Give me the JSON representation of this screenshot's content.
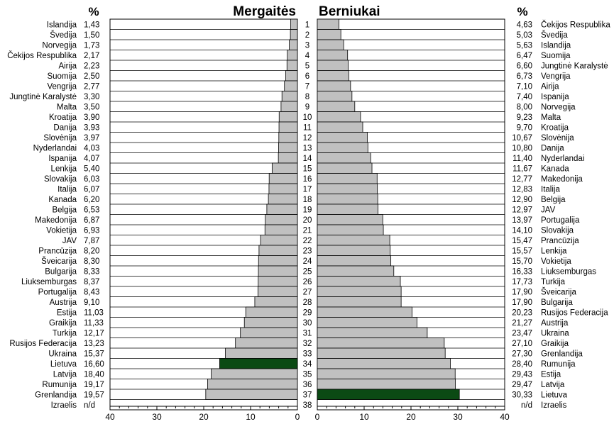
{
  "chart_data": {
    "type": "bar",
    "layout": "back-to-back horizontal bars",
    "percent_label": "%",
    "tick_labels": [
      "40",
      "30",
      "20",
      "10",
      "0",
      "0",
      "10",
      "20",
      "30",
      "40"
    ],
    "xlim": [
      0,
      40
    ],
    "highlight_color": "#0b4a14",
    "bar_color": "#c0c0c0",
    "missing_label": "n/d",
    "rank_labels": [
      "1",
      "2",
      "3",
      "4",
      "5",
      "6",
      "7",
      "8",
      "9",
      "10",
      "11",
      "12",
      "13",
      "14",
      "15",
      "16",
      "17",
      "18",
      "19",
      "20",
      "21",
      "22",
      "23",
      "24",
      "25",
      "26",
      "27",
      "28",
      "29",
      "30",
      "31",
      "32",
      "33",
      "34",
      "35",
      "36",
      "37",
      "38"
    ],
    "girls": {
      "title": "Mergaitės",
      "countries": [
        "Islandija",
        "Švedija",
        "Norvegija",
        "Čekijos Respublika",
        "Airija",
        "Suomija",
        "Vengrija",
        "Jungtinė Karalystė",
        "Malta",
        "Kroatija",
        "Danija",
        "Slovėnija",
        "Nyderlandai",
        "Ispanija",
        "Lenkija",
        "Slovakija",
        "Italija",
        "Kanada",
        "Belgija",
        "Makedonija",
        "Vokietija",
        "JAV",
        "Prancūzija",
        "Šveicarija",
        "Bulgarija",
        "Liuksemburgas",
        "Portugalija",
        "Austrija",
        "Estija",
        "Graikija",
        "Turkija",
        "Rusijos Federacija",
        "Ukraina",
        "Lietuva",
        "Latvija",
        "Rumunija",
        "Grenlandija",
        "Izraelis"
      ],
      "value_labels": [
        "1,43",
        "1,50",
        "1,73",
        "2,17",
        "2,23",
        "2,50",
        "2,77",
        "3,30",
        "3,50",
        "3,90",
        "3,93",
        "3,97",
        "4,03",
        "4,07",
        "5,40",
        "6,03",
        "6,07",
        "6,20",
        "6,53",
        "6,87",
        "6,93",
        "7,87",
        "8,20",
        "8,30",
        "8,33",
        "8,37",
        "8,43",
        "9,10",
        "11,03",
        "11,33",
        "12,17",
        "13,23",
        "15,37",
        "16,60",
        "18,40",
        "19,17",
        "19,57",
        "n/d"
      ],
      "values": [
        1.43,
        1.5,
        1.73,
        2.17,
        2.23,
        2.5,
        2.77,
        3.3,
        3.5,
        3.9,
        3.93,
        3.97,
        4.03,
        4.07,
        5.4,
        6.03,
        6.07,
        6.2,
        6.53,
        6.87,
        6.93,
        7.87,
        8.2,
        8.3,
        8.33,
        8.37,
        8.43,
        9.1,
        11.03,
        11.33,
        12.17,
        13.23,
        15.37,
        16.6,
        18.4,
        19.17,
        19.57,
        null
      ],
      "highlight": "Lietuva"
    },
    "boys": {
      "title": "Berniukai",
      "countries": [
        "Čekijos Respublika",
        "Švedija",
        "Islandija",
        "Suomija",
        "Jungtinė Karalystė",
        "Vengrija",
        "Airija",
        "Ispanija",
        "Norvegija",
        "Malta",
        "Kroatija",
        "Slovėnija",
        "Danija",
        "Nyderlandai",
        "Kanada",
        "Makedonija",
        "Italija",
        "Belgija",
        "JAV",
        "Portugalija",
        "Slovakija",
        "Prancūzija",
        "Lenkija",
        "Vokietija",
        "Liuksemburgas",
        "Turkija",
        "Šveicarija",
        "Bulgarija",
        "Rusijos Federacija",
        "Austrija",
        "Ukraina",
        "Graikija",
        "Grenlandija",
        "Rumunija",
        "Estija",
        "Latvija",
        "Lietuva",
        "Izraelis"
      ],
      "value_labels": [
        "4,63",
        "5,03",
        "5,63",
        "6,47",
        "6,60",
        "6,73",
        "7,10",
        "7,40",
        "8,00",
        "9,23",
        "9,70",
        "10,67",
        "10,80",
        "11,40",
        "11,67",
        "12,77",
        "12,83",
        "12,90",
        "12,97",
        "13,97",
        "14,10",
        "15,47",
        "15,57",
        "15,70",
        "16,33",
        "17,73",
        "17,90",
        "17,90",
        "20,23",
        "21,27",
        "23,47",
        "27,10",
        "27,30",
        "28,40",
        "29,43",
        "29,47",
        "30,33",
        "n/d"
      ],
      "values": [
        4.63,
        5.03,
        5.63,
        6.47,
        6.6,
        6.73,
        7.1,
        7.4,
        8.0,
        9.23,
        9.7,
        10.67,
        10.8,
        11.4,
        11.67,
        12.77,
        12.83,
        12.9,
        12.97,
        13.97,
        14.1,
        15.47,
        15.57,
        15.7,
        16.33,
        17.73,
        17.9,
        17.9,
        20.23,
        21.27,
        23.47,
        27.1,
        27.3,
        28.4,
        29.43,
        29.47,
        30.33,
        null
      ],
      "highlight": "Lietuva"
    }
  }
}
